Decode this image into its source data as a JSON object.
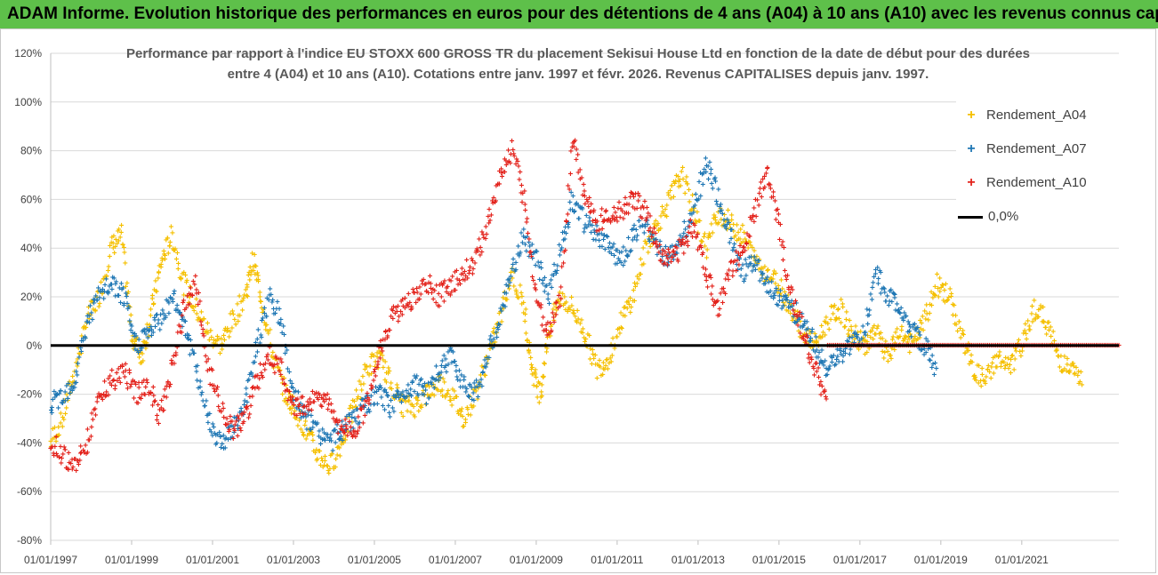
{
  "banner_title": "ADAM Informe. Evolution historique des performances en euros pour des détentions de 4 ans (A04) à 10 ans (A10) avec les revenus connus capitalisés",
  "chart_data": {
    "type": "scatter",
    "title_line1": "Performance par rapport à l'indice EU STOXX 600 GROSS TR  du placement Sekisui House Ltd en fonction de la date de début pour des durées",
    "title_line2": "entre 4 (A04) et 10 ans (A10).  Cotations entre janv. 1997 et févr. 2026. Revenus CAPITALISES depuis janv. 1997.",
    "x_range": [
      1997.0,
      2023.4
    ],
    "ylim": [
      -80,
      120
    ],
    "y_ticks": [
      -80,
      -60,
      -40,
      -20,
      0,
      20,
      40,
      60,
      80,
      100,
      120
    ],
    "y_tick_labels": [
      "-80%",
      "-60%",
      "-40%",
      "-20%",
      "0%",
      "20%",
      "40%",
      "60%",
      "80%",
      "100%",
      "120%"
    ],
    "x_ticks": [
      1997,
      1999,
      2001,
      2003,
      2005,
      2007,
      2009,
      2011,
      2013,
      2015,
      2017,
      2019,
      2021
    ],
    "x_tick_labels": [
      "01/01/1997",
      "01/01/1999",
      "01/01/2001",
      "01/01/2003",
      "01/01/2005",
      "01/01/2007",
      "01/01/2009",
      "01/01/2011",
      "01/01/2013",
      "01/01/2015",
      "01/01/2017",
      "01/01/2019",
      "01/01/2021"
    ],
    "reference_line": {
      "name": "0,0%",
      "value": 0,
      "color": "#000000"
    },
    "series": [
      {
        "name": "Rendement_A04",
        "color": "#f5c000",
        "x": [
          1997.0,
          1997.3,
          1997.6,
          1997.9,
          1998.2,
          1998.5,
          1998.75,
          1999.0,
          1999.25,
          1999.5,
          1999.75,
          2000.0,
          2000.3,
          2000.6,
          2000.9,
          2001.2,
          2001.5,
          2001.8,
          2002.0,
          2002.2,
          2002.5,
          2002.8,
          2003.0,
          2003.3,
          2003.6,
          2003.9,
          2004.2,
          2004.5,
          2004.8,
          2005.1,
          2005.4,
          2005.7,
          2006.0,
          2006.3,
          2006.6,
          2006.9,
          2007.2,
          2007.5,
          2007.8,
          2008.1,
          2008.4,
          2008.7,
          2008.9,
          2009.1,
          2009.3,
          2009.6,
          2009.9,
          2010.2,
          2010.5,
          2010.8,
          2011.1,
          2011.4,
          2011.7,
          2012.0,
          2012.3,
          2012.6,
          2012.9,
          2013.2,
          2013.5,
          2013.8,
          2014.1,
          2014.4,
          2014.7,
          2015.0,
          2015.3,
          2015.6,
          2015.9,
          2016.2,
          2016.5,
          2016.8,
          2017.1,
          2017.4,
          2017.7,
          2018.0,
          2018.3,
          2018.6,
          2018.9,
          2019.2,
          2019.5,
          2019.8,
          2020.1,
          2020.4,
          2020.7,
          2021.0,
          2021.3,
          2021.6,
          2021.9,
          2022.2,
          2022.5
        ],
        "y": [
          -40,
          -30,
          -10,
          10,
          20,
          40,
          45,
          5,
          -5,
          15,
          35,
          45,
          25,
          15,
          5,
          0,
          10,
          20,
          35,
          20,
          -5,
          -20,
          -25,
          -35,
          -45,
          -50,
          -40,
          -25,
          -10,
          -5,
          -15,
          -25,
          -25,
          -20,
          -15,
          -20,
          -30,
          -20,
          -5,
          10,
          30,
          15,
          -10,
          -20,
          5,
          20,
          15,
          5,
          -10,
          -5,
          10,
          20,
          40,
          50,
          60,
          70,
          55,
          40,
          55,
          50,
          45,
          35,
          30,
          25,
          15,
          5,
          0,
          10,
          15,
          5,
          0,
          5,
          -5,
          5,
          0,
          10,
          25,
          20,
          5,
          -10,
          -15,
          -5,
          -10,
          0,
          15,
          10,
          -5,
          -10,
          -15
        ]
      },
      {
        "name": "Rendement_A07",
        "color": "#1f77b4",
        "x": [
          1997.0,
          1997.3,
          1997.6,
          1997.9,
          1998.2,
          1998.5,
          1998.8,
          1999.1,
          1999.4,
          1999.7,
          2000.0,
          2000.3,
          2000.6,
          2000.9,
          2001.2,
          2001.5,
          2001.8,
          2002.1,
          2002.4,
          2002.7,
          2003.0,
          2003.3,
          2003.6,
          2003.9,
          2004.2,
          2004.5,
          2004.8,
          2005.1,
          2005.4,
          2005.7,
          2006.0,
          2006.3,
          2006.6,
          2006.9,
          2007.2,
          2007.5,
          2007.8,
          2008.1,
          2008.4,
          2008.7,
          2009.0,
          2009.3,
          2009.6,
          2009.9,
          2010.2,
          2010.5,
          2010.8,
          2011.1,
          2011.4,
          2011.7,
          2012.0,
          2012.3,
          2012.6,
          2012.9,
          2013.2,
          2013.5,
          2013.8,
          2014.1,
          2014.4,
          2014.7,
          2015.0,
          2015.3,
          2015.6,
          2015.9,
          2016.2,
          2016.5,
          2016.8,
          2017.1,
          2017.4,
          2017.7,
          2018.0,
          2018.3,
          2018.6,
          2018.9
        ],
        "y": [
          -25,
          -20,
          -15,
          10,
          20,
          25,
          20,
          0,
          5,
          10,
          20,
          10,
          -10,
          -30,
          -40,
          -35,
          -25,
          0,
          20,
          10,
          -20,
          -30,
          -35,
          -40,
          -35,
          -30,
          -25,
          -20,
          -25,
          -20,
          -15,
          -20,
          -10,
          -5,
          -15,
          -20,
          -5,
          10,
          30,
          45,
          35,
          20,
          40,
          60,
          50,
          45,
          40,
          35,
          45,
          50,
          40,
          35,
          45,
          55,
          75,
          60,
          45,
          30,
          35,
          25,
          20,
          15,
          10,
          0,
          -10,
          -5,
          0,
          5,
          30,
          20,
          15,
          5,
          0,
          -10
        ]
      },
      {
        "name": "Rendement_A10",
        "color": "#e3231c",
        "x": [
          1997.0,
          1997.3,
          1997.6,
          1997.9,
          1998.2,
          1998.5,
          1998.8,
          1999.1,
          1999.4,
          1999.7,
          2000.0,
          2000.3,
          2000.6,
          2000.9,
          2001.2,
          2001.5,
          2001.8,
          2002.1,
          2002.4,
          2002.7,
          2003.0,
          2003.3,
          2003.6,
          2003.9,
          2004.2,
          2004.5,
          2004.8,
          2005.1,
          2005.4,
          2005.7,
          2006.0,
          2006.3,
          2006.6,
          2006.9,
          2007.2,
          2007.5,
          2007.8,
          2008.1,
          2008.4,
          2008.7,
          2009.0,
          2009.3,
          2009.6,
          2009.9,
          2010.2,
          2010.5,
          2010.8,
          2011.1,
          2011.4,
          2011.7,
          2012.0,
          2012.3,
          2012.6,
          2012.9,
          2013.2,
          2013.5,
          2013.8,
          2014.1,
          2014.4,
          2014.7,
          2015.0,
          2015.3,
          2015.6,
          2015.9,
          2016.2
        ],
        "y": [
          -40,
          -45,
          -50,
          -40,
          -20,
          -15,
          -10,
          -20,
          -15,
          -30,
          -10,
          15,
          25,
          -10,
          -25,
          -35,
          -30,
          -15,
          -5,
          -10,
          -25,
          -25,
          -20,
          -25,
          -35,
          -35,
          -25,
          -5,
          10,
          15,
          20,
          25,
          20,
          25,
          30,
          35,
          50,
          70,
          80,
          60,
          20,
          5,
          20,
          85,
          60,
          50,
          55,
          55,
          60,
          55,
          40,
          35,
          40,
          50,
          30,
          15,
          30,
          40,
          55,
          70,
          50,
          20,
          5,
          -10,
          -25
        ]
      }
    ]
  },
  "legend": {
    "a04": "Rendement_A04",
    "a07": "Rendement_A07",
    "a10": "Rendement_A10",
    "zero": "0,0%"
  }
}
